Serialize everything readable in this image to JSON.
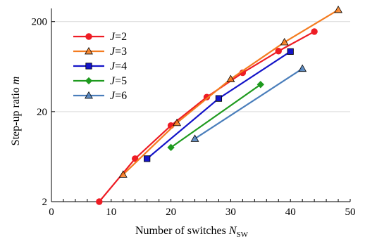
{
  "chart_data": {
    "type": "line",
    "xlabel": "Number of switches",
    "xlabel_symbol": "N",
    "xlabel_subscript": "SW",
    "ylabel": "Step-up ratio",
    "ylabel_symbol": "m",
    "xlim": [
      0,
      50
    ],
    "ylim": [
      2,
      280
    ],
    "y_scale": "log",
    "x_ticks": [
      0,
      10,
      20,
      30,
      40,
      50
    ],
    "y_ticks": [
      2,
      20,
      200
    ],
    "grid": "horizontal",
    "legend_position": "top-left",
    "series": [
      {
        "name": "J=2",
        "legend_symbol": "J",
        "legend_value": "=2",
        "color": "#ee1c24",
        "marker": "circle",
        "x": [
          8,
          14,
          20,
          26,
          32,
          38,
          44
        ],
        "y": [
          2,
          6,
          14,
          29,
          54,
          94,
          155
        ]
      },
      {
        "name": "J=3",
        "legend_symbol": "J",
        "legend_value": "=3",
        "color": "#f47c20",
        "marker": "triangle",
        "x": [
          12,
          21,
          30,
          39,
          48
        ],
        "y": [
          4,
          15,
          46,
          118,
          270
        ]
      },
      {
        "name": "J=4",
        "legend_symbol": "J",
        "legend_value": "=4",
        "color": "#1414c8",
        "marker": "square",
        "x": [
          16,
          28,
          40
        ],
        "y": [
          6,
          28,
          93
        ]
      },
      {
        "name": "J=5",
        "legend_symbol": "J",
        "legend_value": "=5",
        "color": "#1e9a1e",
        "marker": "diamond",
        "x": [
          20,
          35
        ],
        "y": [
          8,
          40
        ]
      },
      {
        "name": "J=6",
        "legend_symbol": "J",
        "legend_value": "=6",
        "color": "#4a7ebb",
        "marker": "triangle",
        "x": [
          24,
          42
        ],
        "y": [
          10,
          60
        ]
      }
    ]
  }
}
